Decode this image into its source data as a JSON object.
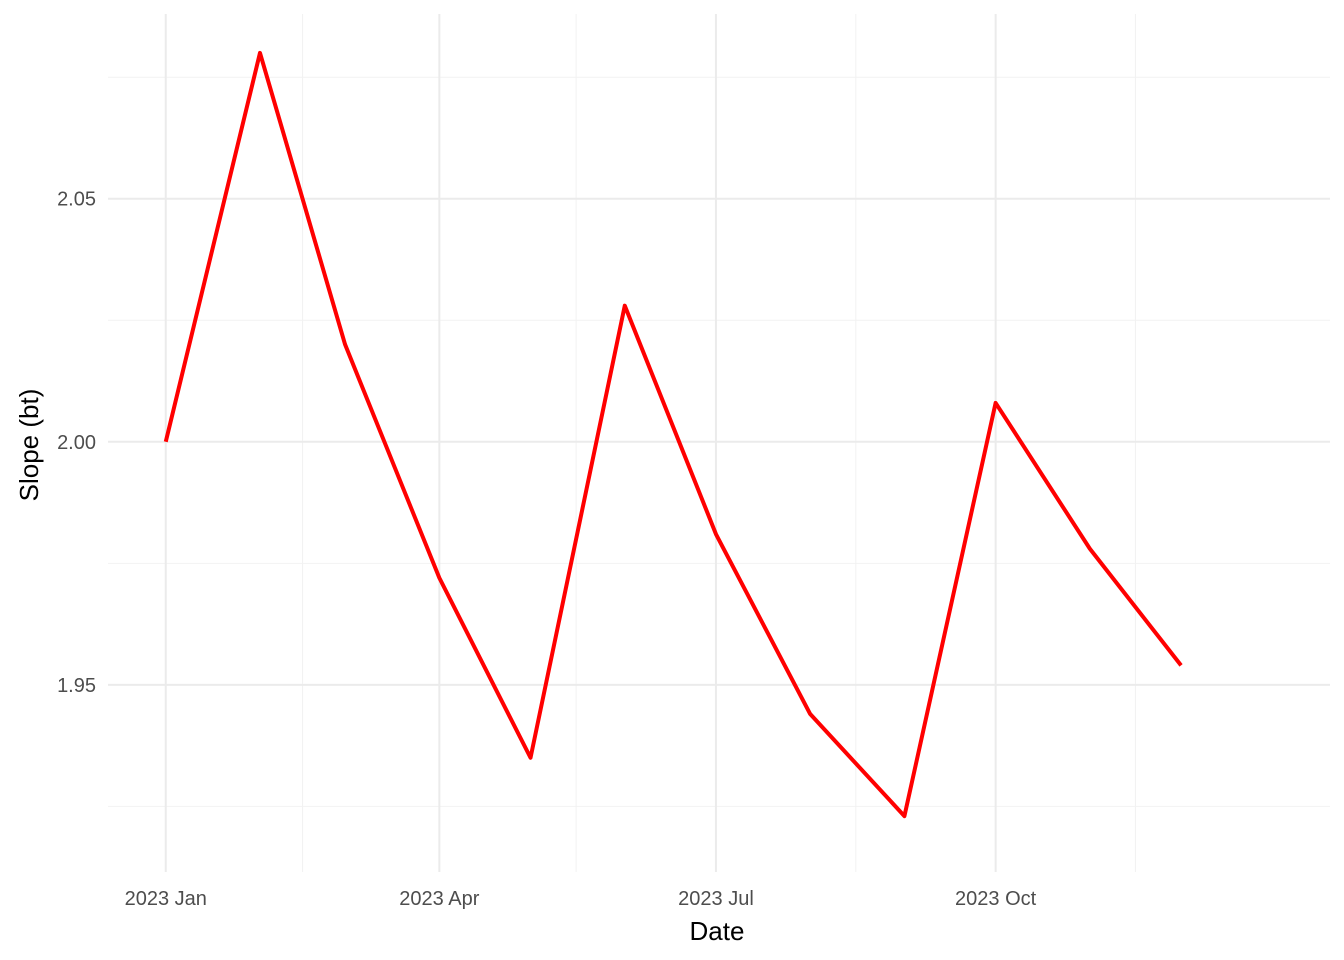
{
  "chart_data": {
    "type": "line",
    "title": "",
    "xlabel": "Date",
    "ylabel": "Slope (bt)",
    "x_ticks": [
      {
        "date": "2023-01-01",
        "label": "2023 Jan"
      },
      {
        "date": "2023-04-01",
        "label": "2023 Apr"
      },
      {
        "date": "2023-07-01",
        "label": "2023 Jul"
      },
      {
        "date": "2023-10-01",
        "label": "2023 Oct"
      }
    ],
    "x_minor_ticks": [
      "2023-02-15",
      "2023-05-16",
      "2023-08-16",
      "2023-11-16"
    ],
    "y_ticks": [
      {
        "value": 1.95,
        "label": "1.95"
      },
      {
        "value": 2.0,
        "label": "2.00"
      },
      {
        "value": 2.05,
        "label": "2.05"
      }
    ],
    "y_minor_ticks": [
      1.925,
      1.975,
      2.025,
      2.075
    ],
    "xlim": [
      "2022-12-13",
      "2024-01-19"
    ],
    "ylim": [
      1.9115,
      2.088
    ],
    "grid": true,
    "legend": "none",
    "series": [
      {
        "color": "#ff0000",
        "x": [
          "2023-01-01",
          "2023-02-01",
          "2023-03-01",
          "2023-04-01",
          "2023-05-01",
          "2023-06-01",
          "2023-07-01",
          "2023-08-01",
          "2023-09-01",
          "2023-10-01",
          "2023-11-01",
          "2023-12-01"
        ],
        "y": [
          2.0,
          2.08,
          2.02,
          1.972,
          1.935,
          2.028,
          1.981,
          1.944,
          1.923,
          2.008,
          1.978,
          1.954
        ]
      }
    ]
  }
}
